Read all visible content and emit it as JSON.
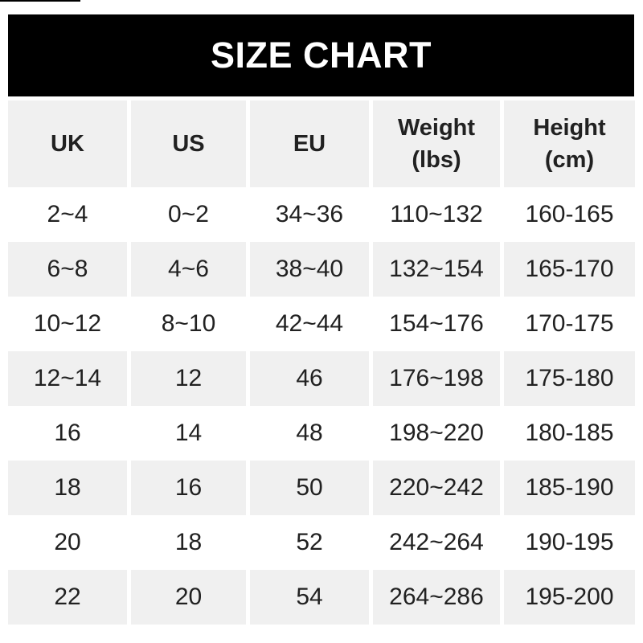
{
  "banner": {
    "title": "SIZE CHART",
    "background": "#000000",
    "text_color": "#ffffff"
  },
  "colors": {
    "page_background": "#ffffff",
    "row_shade": "#f0f0f0",
    "text": "#212121"
  },
  "table": {
    "columns": [
      {
        "label": "UK",
        "sub": ""
      },
      {
        "label": "US",
        "sub": ""
      },
      {
        "label": "EU",
        "sub": ""
      },
      {
        "label": "Weight",
        "sub": "(lbs)"
      },
      {
        "label": "Height",
        "sub": "(cm)"
      }
    ]
  },
  "chart_data": {
    "type": "table",
    "title": "SIZE CHART",
    "columns": [
      "UK",
      "US",
      "EU",
      "Weight (lbs)",
      "Height (cm)"
    ],
    "rows": [
      [
        "2~4",
        "0~2",
        "34~36",
        "110~132",
        "160-165"
      ],
      [
        "6~8",
        "4~6",
        "38~40",
        "132~154",
        "165-170"
      ],
      [
        "10~12",
        "8~10",
        "42~44",
        "154~176",
        "170-175"
      ],
      [
        "12~14",
        "12",
        "46",
        "176~198",
        "175-180"
      ],
      [
        "16",
        "14",
        "48",
        "198~220",
        "180-185"
      ],
      [
        "18",
        "16",
        "50",
        "220~242",
        "185-190"
      ],
      [
        "20",
        "18",
        "52",
        "242~264",
        "190-195"
      ],
      [
        "22",
        "20",
        "54",
        "264~286",
        "195-200"
      ]
    ],
    "layout": {
      "header_row_shaded": true,
      "alternating_row_shading": "rows 2,4,6,8 shaded"
    }
  }
}
